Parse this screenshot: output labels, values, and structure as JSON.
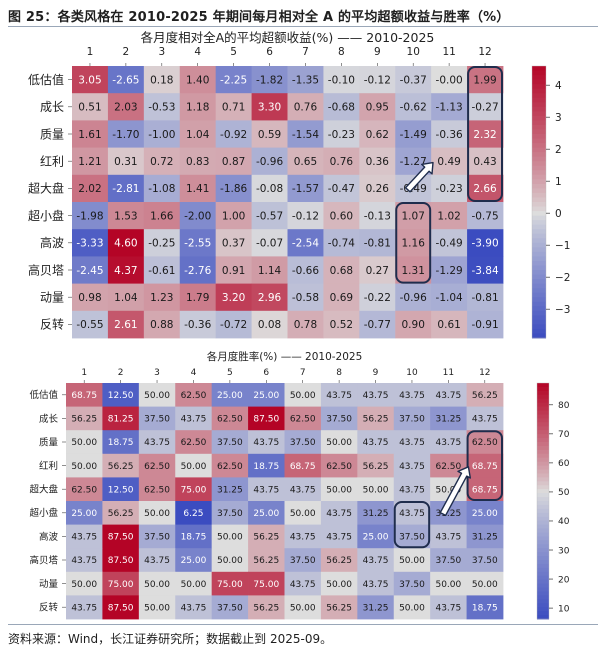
{
  "figure": {
    "title": "图 25：各类风格在 2010-2025 年期间每月相对全 A 的平均超额收益与胜率（%）",
    "source": "资料来源：Wind，长江证券研究所；数据截止到 2025-09。"
  },
  "chart_data": [
    {
      "type": "heatmap",
      "title": "各月度相对全A的平均超额收益(%) —— 2010-2025",
      "columns": [
        "1",
        "2",
        "3",
        "4",
        "5",
        "6",
        "7",
        "8",
        "9",
        "10",
        "11",
        "12"
      ],
      "rows": [
        "低估值",
        "成长",
        "质量",
        "红利",
        "超大盘",
        "超小盘",
        "高波",
        "高贝塔",
        "动量",
        "反转"
      ],
      "values": [
        [
          3.05,
          -2.65,
          0.18,
          1.4,
          -2.25,
          -1.82,
          -1.35,
          -0.1,
          -0.12,
          -0.37,
          -0.0,
          1.99
        ],
        [
          0.51,
          2.03,
          -0.53,
          1.18,
          0.71,
          3.3,
          0.76,
          -0.68,
          0.95,
          -0.62,
          -1.13,
          -0.27
        ],
        [
          1.61,
          -1.7,
          -1.0,
          1.04,
          -0.92,
          0.59,
          -1.54,
          -0.23,
          0.62,
          -1.49,
          -0.36,
          2.32
        ],
        [
          1.21,
          0.31,
          0.72,
          0.83,
          0.87,
          -0.96,
          0.65,
          0.76,
          0.36,
          -1.27,
          0.49,
          0.43
        ],
        [
          2.02,
          -2.81,
          -1.08,
          1.41,
          -1.86,
          -0.08,
          -1.57,
          -0.47,
          0.26,
          -0.49,
          -0.23,
          2.66
        ],
        [
          -1.98,
          1.53,
          1.66,
          -2.0,
          1.0,
          -0.57,
          -0.12,
          0.6,
          -0.13,
          1.07,
          1.02,
          -0.75
        ],
        [
          -3.33,
          4.6,
          -0.25,
          -2.55,
          0.37,
          -0.07,
          -2.54,
          -0.74,
          -0.81,
          1.16,
          -0.49,
          -3.9
        ],
        [
          -2.45,
          4.37,
          -0.61,
          -2.76,
          0.91,
          1.14,
          -0.66,
          0.68,
          0.27,
          1.31,
          -1.29,
          -3.84
        ],
        [
          0.98,
          1.04,
          1.23,
          1.79,
          3.2,
          2.96,
          -0.58,
          0.69,
          -0.22,
          -0.96,
          -1.04,
          -0.81
        ],
        [
          -0.55,
          2.61,
          0.88,
          -0.36,
          -0.72,
          0.08,
          0.78,
          0.52,
          -0.77,
          0.9,
          0.61,
          -0.91
        ]
      ],
      "labels": [
        [
          "3.05",
          "-2.65",
          "0.18",
          "1.40",
          "-2.25",
          "-1.82",
          "-1.35",
          "-0.10",
          "-0.12",
          "-0.37",
          "-0.00",
          "1.99"
        ],
        [
          "0.51",
          "2.03",
          "-0.53",
          "1.18",
          "0.71",
          "3.30",
          "0.76",
          "-0.68",
          "0.95",
          "-0.62",
          "-1.13",
          "-0.27"
        ],
        [
          "1.61",
          "-1.70",
          "-1.00",
          "1.04",
          "-0.92",
          "0.59",
          "-1.54",
          "-0.23",
          "0.62",
          "-1.49",
          "-0.36",
          "2.32"
        ],
        [
          "1.21",
          "0.31",
          "0.72",
          "0.83",
          "0.87",
          "-0.96",
          "0.65",
          "0.76",
          "0.36",
          "-1.27",
          "0.49",
          "0.43"
        ],
        [
          "2.02",
          "-2.81",
          "-1.08",
          "1.41",
          "-1.86",
          "-0.08",
          "-1.57",
          "-0.47",
          "0.26",
          "-0.49",
          "-0.23",
          "2.66"
        ],
        [
          "-1.98",
          "1.53",
          "1.66",
          "-2.00",
          "1.00",
          "-0.57",
          "-0.12",
          "0.60",
          "-0.13",
          "1.07",
          "1.02",
          "-0.75"
        ],
        [
          "-3.33",
          "4.60",
          "-0.25",
          "-2.55",
          "0.37",
          "-0.07",
          "-2.54",
          "-0.74",
          "-0.81",
          "1.16",
          "-0.49",
          "-3.90"
        ],
        [
          "-2.45",
          "4.37",
          "-0.61",
          "-2.76",
          "0.91",
          "1.14",
          "-0.66",
          "0.68",
          "0.27",
          "1.31",
          "-1.29",
          "-3.84"
        ],
        [
          "0.98",
          "1.04",
          "1.23",
          "1.79",
          "3.20",
          "2.96",
          "-0.58",
          "0.69",
          "-0.22",
          "-0.96",
          "-1.04",
          "-0.81"
        ],
        [
          "-0.55",
          "2.61",
          "0.88",
          "-0.36",
          "-0.72",
          "0.08",
          "0.78",
          "0.52",
          "-0.77",
          "0.90",
          "0.61",
          "-0.91"
        ]
      ],
      "vmin": -3.9,
      "vmax": 4.6,
      "center": 0,
      "colorbar_ticks": [
        -3,
        -2,
        -1,
        0,
        1,
        2,
        3,
        4
      ],
      "colormap": {
        "low": "#3b4cc0",
        "mid": "#dddddd",
        "high": "#b40426"
      },
      "highlights": [
        {
          "column": "12",
          "rows": [
            "低估值",
            "超大盘"
          ]
        },
        {
          "column": "10",
          "rows": [
            "超小盘",
            "高贝塔"
          ]
        }
      ],
      "arrow": {
        "from_row": "超大盘",
        "from_column": "10",
        "to_row": "红利",
        "to_column": "11"
      }
    },
    {
      "type": "heatmap",
      "title": "各月度胜率(%) —— 2010-2025",
      "columns": [
        "1",
        "2",
        "3",
        "4",
        "5",
        "6",
        "7",
        "8",
        "9",
        "10",
        "11",
        "12"
      ],
      "rows": [
        "低估值",
        "成长",
        "质量",
        "红利",
        "超大盘",
        "超小盘",
        "高波",
        "高贝塔",
        "动量",
        "反转"
      ],
      "values": [
        [
          68.75,
          12.5,
          50.0,
          62.5,
          25.0,
          25.0,
          50.0,
          43.75,
          43.75,
          43.75,
          43.75,
          56.25
        ],
        [
          56.25,
          81.25,
          37.5,
          43.75,
          62.5,
          87.5,
          62.5,
          37.5,
          56.25,
          37.5,
          31.25,
          43.75
        ],
        [
          50.0,
          18.75,
          43.75,
          62.5,
          37.5,
          43.75,
          37.5,
          50.0,
          43.75,
          43.75,
          43.75,
          62.5
        ],
        [
          50.0,
          56.25,
          62.5,
          50.0,
          62.5,
          18.75,
          68.75,
          62.5,
          56.25,
          43.75,
          62.5,
          68.75
        ],
        [
          62.5,
          12.5,
          62.5,
          75.0,
          31.25,
          43.75,
          43.75,
          50.0,
          50.0,
          43.75,
          50.0,
          68.75
        ],
        [
          25.0,
          56.25,
          50.0,
          6.25,
          37.5,
          25.0,
          50.0,
          43.75,
          31.25,
          43.75,
          31.25,
          25.0
        ],
        [
          43.75,
          87.5,
          37.5,
          18.75,
          50.0,
          56.25,
          43.75,
          43.75,
          25.0,
          37.5,
          43.75,
          31.25
        ],
        [
          43.75,
          87.5,
          43.75,
          25.0,
          50.0,
          56.25,
          37.5,
          56.25,
          43.75,
          50.0,
          37.5,
          37.5
        ],
        [
          50.0,
          75.0,
          50.0,
          50.0,
          75.0,
          75.0,
          43.75,
          50.0,
          43.75,
          37.5,
          50.0,
          50.0
        ],
        [
          43.75,
          87.5,
          50.0,
          43.75,
          37.5,
          56.25,
          50.0,
          56.25,
          31.25,
          50.0,
          43.75,
          18.75
        ]
      ],
      "labels": [
        [
          "68.75",
          "12.50",
          "50.00",
          "62.50",
          "25.00",
          "25.00",
          "50.00",
          "43.75",
          "43.75",
          "43.75",
          "43.75",
          "56.25"
        ],
        [
          "56.25",
          "81.25",
          "37.50",
          "43.75",
          "62.50",
          "87.50",
          "62.50",
          "37.50",
          "56.25",
          "37.50",
          "31.25",
          "43.75"
        ],
        [
          "50.00",
          "18.75",
          "43.75",
          "62.50",
          "37.50",
          "43.75",
          "37.50",
          "50.00",
          "43.75",
          "43.75",
          "43.75",
          "62.50"
        ],
        [
          "50.00",
          "56.25",
          "62.50",
          "50.00",
          "62.50",
          "18.75",
          "68.75",
          "62.50",
          "56.25",
          "43.75",
          "62.50",
          "68.75"
        ],
        [
          "62.50",
          "12.50",
          "62.50",
          "75.00",
          "31.25",
          "43.75",
          "43.75",
          "50.00",
          "50.00",
          "43.75",
          "50.00",
          "68.75"
        ],
        [
          "25.00",
          "56.25",
          "50.00",
          "6.25",
          "37.50",
          "25.00",
          "50.00",
          "43.75",
          "31.25",
          "43.75",
          "31.25",
          "25.00"
        ],
        [
          "43.75",
          "87.50",
          "37.50",
          "18.75",
          "50.00",
          "56.25",
          "43.75",
          "43.75",
          "25.00",
          "37.50",
          "43.75",
          "31.25"
        ],
        [
          "43.75",
          "87.50",
          "43.75",
          "25.00",
          "50.00",
          "56.25",
          "37.50",
          "56.25",
          "43.75",
          "50.00",
          "37.50",
          "37.50"
        ],
        [
          "50.00",
          "75.00",
          "50.00",
          "50.00",
          "75.00",
          "75.00",
          "43.75",
          "50.00",
          "43.75",
          "37.50",
          "50.00",
          "50.00"
        ],
        [
          "43.75",
          "87.50",
          "50.00",
          "43.75",
          "37.50",
          "56.25",
          "50.00",
          "56.25",
          "31.25",
          "50.00",
          "43.75",
          "18.75"
        ]
      ],
      "vmin": 6.25,
      "vmax": 87.5,
      "center": 50,
      "colorbar_ticks": [
        10,
        20,
        30,
        40,
        50,
        60,
        70,
        80
      ],
      "colormap": {
        "low": "#3b4cc0",
        "mid": "#dddddd",
        "high": "#b40426"
      },
      "highlights": [
        {
          "column": "12",
          "rows": [
            "质量",
            "超大盘"
          ]
        },
        {
          "column": "10",
          "rows": [
            "超小盘",
            "高波"
          ]
        }
      ],
      "arrow": {
        "from_row": "超小盘",
        "from_column": "11",
        "to_row": "红利",
        "to_column": "12"
      }
    }
  ]
}
